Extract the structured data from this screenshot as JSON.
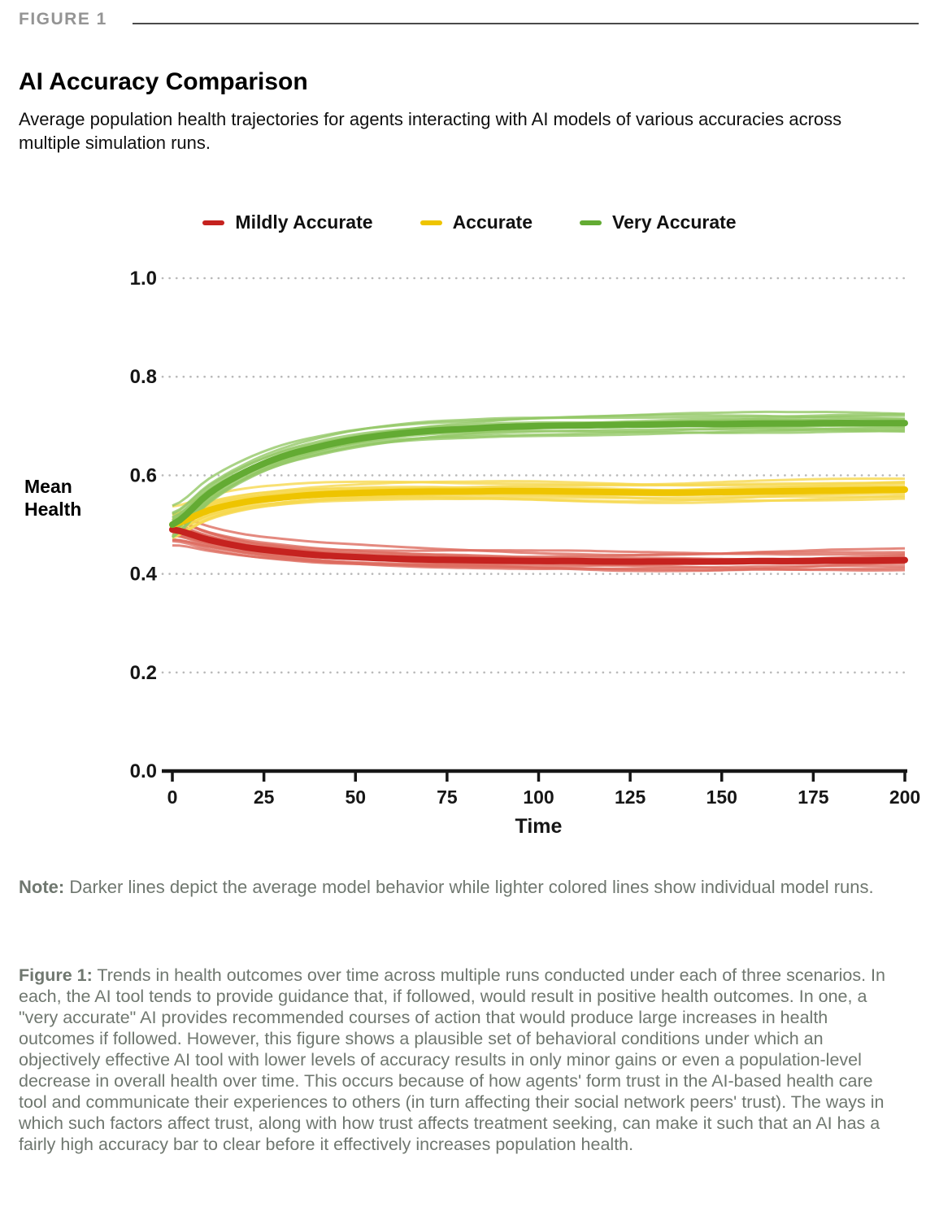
{
  "figure_label": "FIGURE 1",
  "title": "AI Accuracy Comparison",
  "subtitle": "Average population health trajectories for agents interacting with AI models of various accuracies across multiple simulation runs.",
  "note": {
    "label": "Note:",
    "text": " Darker lines depict the average model behavior while lighter colored lines show individual model runs."
  },
  "caption": {
    "label": "Figure 1:",
    "text": " Trends in health outcomes over time across multiple runs conducted under each of three scenarios. In each, the AI tool tends to provide guidance that, if followed, would result in positive health outcomes. In one, a \"very accurate\" AI provides recommended courses of action that would produce large increases in health outcomes if followed. However, this figure shows a plausible set of behavioral conditions under which an objectively effective AI tool with lower levels of accuracy results in only minor gains or even a population-level decrease in overall health over time. This occurs because of how agents' form trust in the AI-based health care tool and communicate their experiences to others (in turn affecting their social network peers' trust). The ways in which such factors affect trust, along with how trust affects treatment seeking, can make it such that an AI has a fairly high accuracy bar to clear before it effectively increases population health."
  },
  "chart_data": {
    "type": "line",
    "title": "AI Accuracy Comparison",
    "xlabel": "Time",
    "ylabel": "Mean Health",
    "xlim": [
      0,
      200
    ],
    "ylim": [
      0.0,
      1.0
    ],
    "x_ticks": [
      0,
      25,
      50,
      75,
      100,
      125,
      150,
      175,
      200
    ],
    "y_ticks": [
      0.0,
      0.2,
      0.4,
      0.6,
      0.8,
      1.0
    ],
    "grid": "horizontal-dotted",
    "legend_position": "top-center",
    "runs_per_series": 14,
    "x": [
      0,
      10,
      20,
      30,
      40,
      50,
      60,
      70,
      80,
      90,
      100,
      110,
      120,
      130,
      140,
      150,
      160,
      170,
      180,
      190,
      200
    ],
    "series": [
      {
        "name": "Mildly Accurate",
        "color": "#c5221f",
        "light_color": "#dd6b5f",
        "values": [
          0.49,
          0.469,
          0.454,
          0.445,
          0.438,
          0.434,
          0.431,
          0.429,
          0.428,
          0.427,
          0.426,
          0.426,
          0.425,
          0.425,
          0.425,
          0.425,
          0.426,
          0.426,
          0.427,
          0.427,
          0.428
        ]
      },
      {
        "name": "Accurate",
        "color": "#eec400",
        "light_color": "#f6d84f",
        "values": [
          0.5,
          0.529,
          0.546,
          0.555,
          0.561,
          0.564,
          0.566,
          0.567,
          0.567,
          0.568,
          0.568,
          0.567,
          0.566,
          0.565,
          0.565,
          0.566,
          0.567,
          0.568,
          0.569,
          0.57,
          0.571
        ]
      },
      {
        "name": "Very Accurate",
        "color": "#63ab33",
        "light_color": "#93c867",
        "values": [
          0.5,
          0.563,
          0.607,
          0.638,
          0.658,
          0.673,
          0.683,
          0.69,
          0.694,
          0.698,
          0.7,
          0.701,
          0.702,
          0.703,
          0.704,
          0.704,
          0.705,
          0.705,
          0.706,
          0.706,
          0.706
        ]
      }
    ]
  }
}
